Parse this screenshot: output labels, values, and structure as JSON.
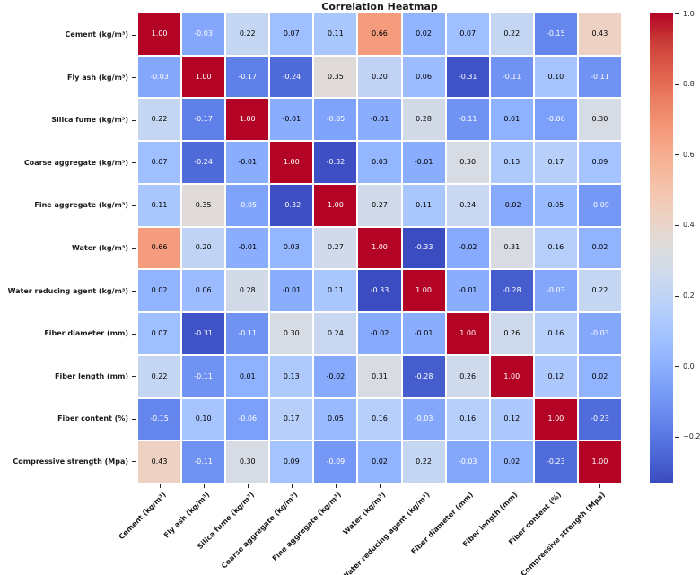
{
  "title": "Correlation Heatmap",
  "chart_data": {
    "type": "heatmap",
    "title": "Correlation Heatmap",
    "categories": [
      "Cement (kg/m³)",
      "Fly ash (kg/m³)",
      "Silica fume (kg/m³)",
      "Coarse aggregate (kg/m³)",
      "Fine aggregate (kg/m³)",
      "Water (kg/m³)",
      "Water reducing agent (kg/m³)",
      "Fiber diameter (mm)",
      "Fiber length (mm)",
      "Fiber content (%)",
      "Compressive strength (Mpa)"
    ],
    "matrix": [
      [
        1.0,
        -0.03,
        0.22,
        0.07,
        0.11,
        0.66,
        0.02,
        0.07,
        0.22,
        -0.15,
        0.43
      ],
      [
        -0.03,
        1.0,
        -0.17,
        -0.24,
        0.35,
        0.2,
        0.06,
        -0.31,
        -0.11,
        0.1,
        -0.11
      ],
      [
        0.22,
        -0.17,
        1.0,
        -0.01,
        -0.05,
        -0.01,
        0.28,
        -0.11,
        0.01,
        -0.06,
        0.3
      ],
      [
        0.07,
        -0.24,
        -0.01,
        1.0,
        -0.32,
        0.03,
        -0.01,
        0.3,
        0.13,
        0.17,
        0.09
      ],
      [
        0.11,
        0.35,
        -0.05,
        -0.32,
        1.0,
        0.27,
        0.11,
        0.24,
        -0.02,
        0.05,
        -0.09
      ],
      [
        0.66,
        0.2,
        -0.01,
        0.03,
        0.27,
        1.0,
        -0.33,
        -0.02,
        0.31,
        0.16,
        0.02
      ],
      [
        0.02,
        0.06,
        0.28,
        -0.01,
        0.11,
        -0.33,
        1.0,
        -0.01,
        -0.28,
        -0.03,
        0.22
      ],
      [
        0.07,
        -0.31,
        -0.11,
        0.3,
        0.24,
        -0.02,
        -0.01,
        1.0,
        0.26,
        0.16,
        -0.03
      ],
      [
        0.22,
        -0.11,
        0.01,
        0.13,
        -0.02,
        0.31,
        -0.28,
        0.26,
        1.0,
        0.12,
        0.02
      ],
      [
        -0.15,
        0.1,
        -0.06,
        0.17,
        0.05,
        0.16,
        -0.03,
        0.16,
        0.12,
        1.0,
        -0.23
      ],
      [
        0.43,
        -0.11,
        0.3,
        0.09,
        -0.09,
        0.02,
        0.22,
        -0.03,
        0.02,
        -0.23,
        1.0
      ]
    ],
    "value_decimals": 2,
    "colormap": "coolwarm",
    "vmin": -0.33,
    "vmax": 1.0,
    "grid_line_color": "#ffffff",
    "annotation_colors": {
      "on_dark": "#ffffff",
      "on_light": "#000000"
    },
    "colorbar": {
      "position": "right",
      "ticks": [
        {
          "label": "1.0",
          "value": 1.0
        },
        {
          "label": "0.8",
          "value": 0.8
        },
        {
          "label": "0.6",
          "value": 0.6
        },
        {
          "label": "0.4",
          "value": 0.4
        },
        {
          "label": "0.2",
          "value": 0.2
        },
        {
          "label": "0.0",
          "value": 0.0
        },
        {
          "label": "−0.2",
          "value": -0.2
        }
      ]
    }
  }
}
